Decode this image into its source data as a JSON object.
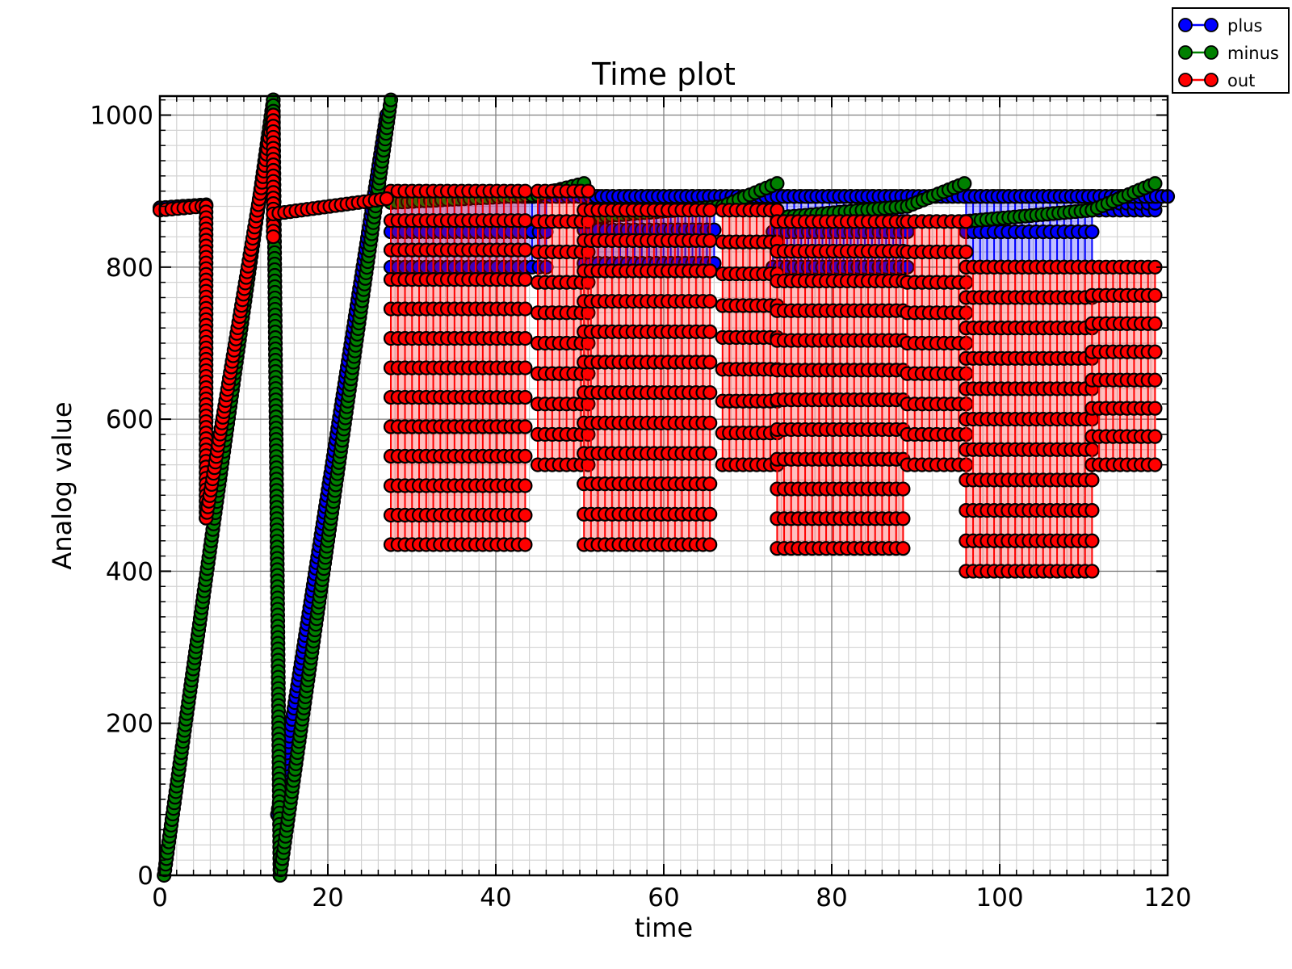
{
  "chart_data": {
    "type": "line",
    "title": "Time plot",
    "xlabel": "time",
    "ylabel": "Analog value",
    "xlim": [
      0,
      120
    ],
    "ylim": [
      0,
      1025
    ],
    "xticks": [
      0,
      20,
      40,
      60,
      80,
      100,
      120
    ],
    "xtick_labels": [
      "0",
      "20",
      "40",
      "60",
      "80",
      "100",
      "120"
    ],
    "yticks": [
      0,
      200,
      400,
      600,
      800,
      1000
    ],
    "ytick_labels": [
      "0",
      "200",
      "400",
      "600",
      "800",
      "1000"
    ],
    "grid": true,
    "minor_grid": true,
    "legend_position": "outside-top-right",
    "marker": "circle",
    "series": [
      {
        "name": "plus",
        "color": "#0000ff",
        "segments": [
          {
            "x": [
              0.0,
              5.5
            ],
            "y": [
              878,
              882
            ]
          },
          {
            "x": [
              14.0,
              27.0
            ],
            "y": [
              80,
              1000
            ]
          },
          {
            "x": [
              27.0,
              120.0
            ],
            "y": [
              893,
              893
            ]
          }
        ],
        "bands": [
          {
            "x": [
              27.5,
              46.0
            ],
            "y": [
              800,
              893
            ]
          },
          {
            "x": [
              50.5,
              66.0
            ],
            "y": [
              805,
              893
            ]
          },
          {
            "x": [
              73.0,
              89.0
            ],
            "y": [
              800,
              893
            ]
          },
          {
            "x": [
              96.0,
              111.0
            ],
            "y": [
              800,
              893
            ]
          },
          {
            "x": [
              111.0,
              118.5
            ],
            "y": [
              875,
              893
            ]
          }
        ]
      },
      {
        "name": "minus",
        "color": "#008000",
        "segments": [
          {
            "x": [
              0.5,
              13.5
            ],
            "y": [
              0,
              1020
            ]
          },
          {
            "x": [
              13.5,
              14.3
            ],
            "y": [
              1020,
              0
            ]
          },
          {
            "x": [
              14.3,
              27.5
            ],
            "y": [
              0,
              1020
            ]
          },
          {
            "x": [
              27.5,
              45.0
            ],
            "y": [
              885,
              895
            ]
          },
          {
            "x": [
              45.0,
              50.5
            ],
            "y": [
              895,
              910
            ]
          },
          {
            "x": [
              50.5,
              67.0
            ],
            "y": [
              865,
              880
            ]
          },
          {
            "x": [
              67.0,
              73.5
            ],
            "y": [
              880,
              910
            ]
          },
          {
            "x": [
              73.5,
              89.0
            ],
            "y": [
              865,
              880
            ]
          },
          {
            "x": [
              89.0,
              95.8
            ],
            "y": [
              880,
              910
            ]
          },
          {
            "x": [
              95.8,
              111.0
            ],
            "y": [
              860,
              875
            ]
          },
          {
            "x": [
              111.0,
              118.5
            ],
            "y": [
              875,
              910
            ]
          }
        ]
      },
      {
        "name": "out",
        "color": "#ff0000",
        "segments": [
          {
            "x": [
              0.0,
              5.0
            ],
            "y": [
              875,
              880
            ]
          },
          {
            "x": [
              5.5,
              5.5
            ],
            "y": [
              880,
              470
            ]
          },
          {
            "x": [
              5.5,
              13.5
            ],
            "y": [
              470,
              1000
            ]
          },
          {
            "x": [
              13.5,
              13.5
            ],
            "y": [
              1000,
              840
            ]
          },
          {
            "x": [
              13.5,
              27.0
            ],
            "y": [
              870,
              890
            ]
          }
        ],
        "bands": [
          {
            "x": [
              27.5,
              43.5
            ],
            "y": [
              435,
              900
            ]
          },
          {
            "x": [
              45.0,
              51.0
            ],
            "y": [
              540,
              900
            ]
          },
          {
            "x": [
              50.5,
              65.5
            ],
            "y": [
              435,
              875
            ]
          },
          {
            "x": [
              67.0,
              73.5
            ],
            "y": [
              540,
              875
            ]
          },
          {
            "x": [
              73.5,
              88.5
            ],
            "y": [
              430,
              860
            ]
          },
          {
            "x": [
              89.0,
              96.0
            ],
            "y": [
              540,
              860
            ]
          },
          {
            "x": [
              96.0,
              111.0
            ],
            "y": [
              400,
              800
            ]
          },
          {
            "x": [
              111.0,
              118.5
            ],
            "y": [
              540,
              800
            ]
          }
        ]
      }
    ]
  }
}
